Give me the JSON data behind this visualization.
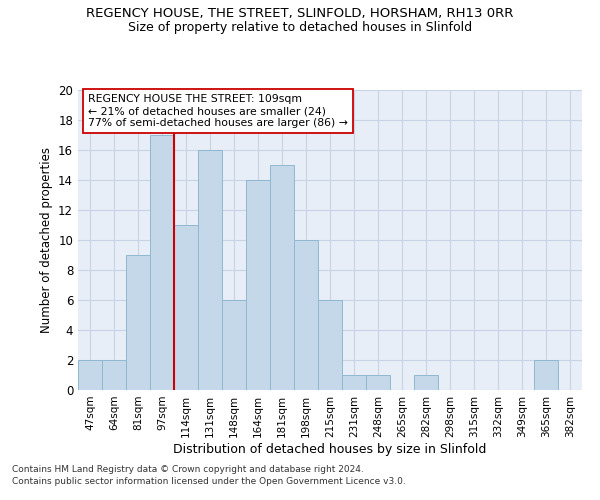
{
  "title": "REGENCY HOUSE, THE STREET, SLINFOLD, HORSHAM, RH13 0RR",
  "subtitle": "Size of property relative to detached houses in Slinfold",
  "xlabel": "Distribution of detached houses by size in Slinfold",
  "ylabel": "Number of detached properties",
  "bin_labels": [
    "47sqm",
    "64sqm",
    "81sqm",
    "97sqm",
    "114sqm",
    "131sqm",
    "148sqm",
    "164sqm",
    "181sqm",
    "198sqm",
    "215sqm",
    "231sqm",
    "248sqm",
    "265sqm",
    "282sqm",
    "298sqm",
    "315sqm",
    "332sqm",
    "349sqm",
    "365sqm",
    "382sqm"
  ],
  "bar_heights": [
    2,
    2,
    9,
    17,
    11,
    16,
    6,
    14,
    15,
    10,
    6,
    1,
    1,
    0,
    1,
    0,
    0,
    0,
    0,
    2,
    0
  ],
  "bar_color": "#c5d8ea",
  "bar_edgecolor": "#8fb8d0",
  "vline_x": 3.5,
  "vline_color": "#cc0000",
  "annotation_text": "REGENCY HOUSE THE STREET: 109sqm\n← 21% of detached houses are smaller (24)\n77% of semi-detached houses are larger (86) →",
  "annotation_box_color": "#ffffff",
  "annotation_box_edgecolor": "#cc0000",
  "ylim": [
    0,
    20
  ],
  "yticks": [
    0,
    2,
    4,
    6,
    8,
    10,
    12,
    14,
    16,
    18,
    20
  ],
  "footer1": "Contains HM Land Registry data © Crown copyright and database right 2024.",
  "footer2": "Contains public sector information licensed under the Open Government Licence v3.0.",
  "grid_color": "#c8d4e4",
  "background_color": "#e8eef8"
}
